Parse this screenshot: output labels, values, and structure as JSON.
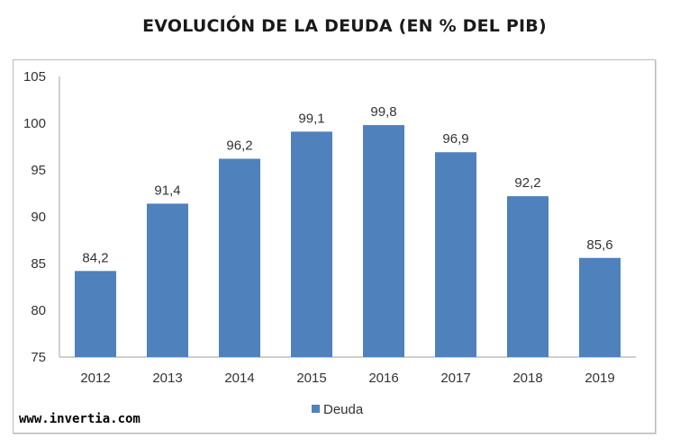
{
  "chart_data": {
    "type": "bar",
    "title": "EVOLUCIÓN DE LA DEUDA (EN % DEL PIB)",
    "xlabel": "",
    "ylabel": "",
    "categories": [
      "2012",
      "2013",
      "2014",
      "2015",
      "2016",
      "2017",
      "2018",
      "2019"
    ],
    "series": [
      {
        "name": "Deuda",
        "values": [
          84.2,
          91.4,
          96.2,
          99.1,
          99.8,
          96.9,
          92.2,
          85.6
        ],
        "labels": [
          "84,2",
          "91,4",
          "96,2",
          "99,1",
          "99,8",
          "96,9",
          "92,2",
          "85,6"
        ],
        "color": "#4f81bd"
      }
    ],
    "ylim": [
      75,
      105
    ],
    "yticks": [
      75,
      80,
      85,
      90,
      95,
      100,
      105
    ],
    "grid": false,
    "legend": {
      "position": "bottom",
      "entries": [
        "Deuda"
      ]
    }
  },
  "watermark": "www.invertia.com"
}
